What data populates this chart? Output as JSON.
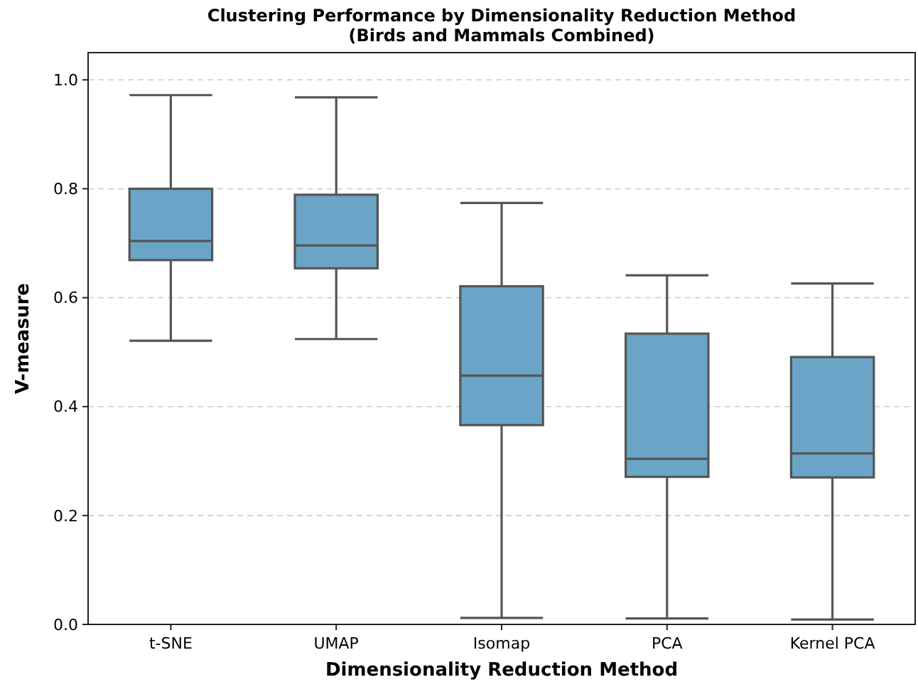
{
  "chart_data": {
    "type": "box",
    "title": "Clustering Performance by Dimensionality Reduction Method\n(Birds and Mammals Combined)",
    "xlabel": "Dimensionality Reduction Method",
    "ylabel": "V-measure",
    "categories": [
      "t-SNE",
      "UMAP",
      "Isomap",
      "PCA",
      "Kernel PCA"
    ],
    "boxes": [
      {
        "low": 0.521,
        "q1": 0.669,
        "median": 0.704,
        "q3": 0.8,
        "high": 0.972
      },
      {
        "low": 0.524,
        "q1": 0.654,
        "median": 0.696,
        "q3": 0.789,
        "high": 0.968
      },
      {
        "low": 0.012,
        "q1": 0.366,
        "median": 0.457,
        "q3": 0.621,
        "high": 0.774
      },
      {
        "low": 0.011,
        "q1": 0.271,
        "median": 0.304,
        "q3": 0.534,
        "high": 0.641
      },
      {
        "low": 0.009,
        "q1": 0.27,
        "median": 0.314,
        "q3": 0.491,
        "high": 0.626
      }
    ],
    "color": "#6aa5c7",
    "ylim": [
      0,
      1.05
    ],
    "yticks": [
      {
        "value": 0,
        "label": "0.0"
      },
      {
        "value": 0.2,
        "label": "0.2"
      },
      {
        "value": 0.4,
        "label": "0.4"
      },
      {
        "value": 0.6,
        "label": "0.6"
      },
      {
        "value": 0.8,
        "label": "0.8"
      },
      {
        "value": 1,
        "label": "1.0"
      }
    ],
    "grid": "y"
  }
}
